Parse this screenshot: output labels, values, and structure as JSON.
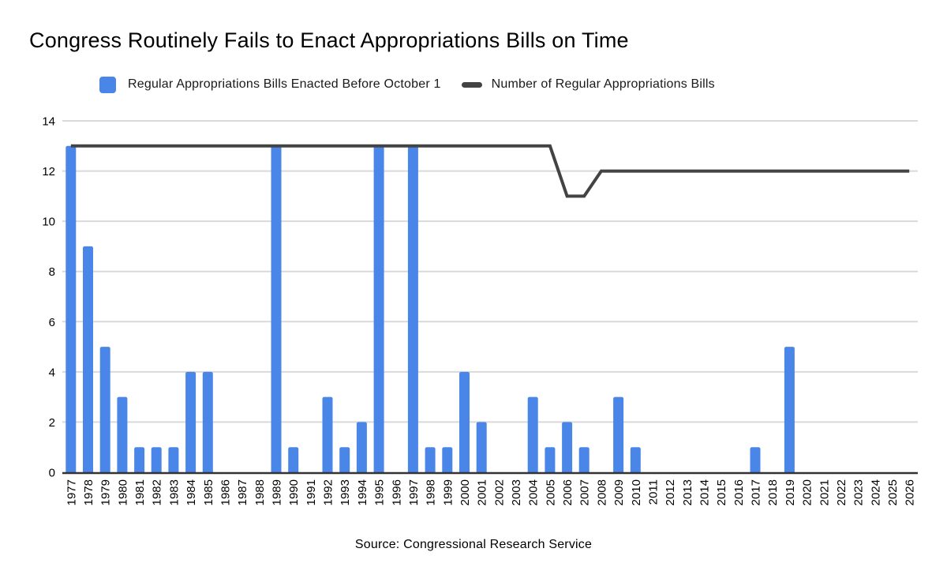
{
  "page": {
    "title": "Congress Routinely Fails to Enact Appropriations Bills on Time",
    "source": "Source: Congressional Research Service"
  },
  "legend": [
    {
      "label": "Regular Appropriations Bills Enacted Before October 1",
      "marker": "square",
      "color": "#4a86e8"
    },
    {
      "label": "Number of Regular Appropriations Bills",
      "marker": "line",
      "color": "#434343"
    }
  ],
  "chart_data": {
    "type": "combo",
    "title": "Congress Routinely Fails to Enact Appropriations Bills on Time",
    "xlabel": "",
    "ylabel": "",
    "ylim": [
      0,
      14
    ],
    "yticks": [
      0,
      2,
      4,
      6,
      8,
      10,
      12,
      14
    ],
    "grid": true,
    "legend_position": "top",
    "categories": [
      "1977",
      "1978",
      "1979",
      "1980",
      "1981",
      "1982",
      "1983",
      "1984",
      "1985",
      "1986",
      "1987",
      "1988",
      "1989",
      "1990",
      "1991",
      "1992",
      "1993",
      "1994",
      "1995",
      "1996",
      "1997",
      "1998",
      "1999",
      "2000",
      "2001",
      "2002",
      "2003",
      "2004",
      "2005",
      "2006",
      "2007",
      "2008",
      "2009",
      "2010",
      "2011",
      "2012",
      "2013",
      "2014",
      "2015",
      "2016",
      "2017",
      "2018",
      "2019",
      "2020",
      "2021",
      "2022",
      "2023",
      "2024",
      "2025",
      "2026"
    ],
    "series": [
      {
        "name": "Regular Appropriations Bills Enacted Before October 1",
        "type": "bar",
        "color": "#4a86e8",
        "values": [
          13,
          9,
          5,
          3,
          1,
          1,
          1,
          4,
          4,
          0,
          0,
          0,
          13,
          1,
          0,
          3,
          1,
          2,
          13,
          0,
          13,
          1,
          1,
          4,
          2,
          0,
          0,
          3,
          1,
          2,
          1,
          0,
          3,
          1,
          0,
          0,
          0,
          0,
          0,
          0,
          1,
          0,
          5,
          0,
          0,
          0,
          0,
          0,
          0,
          0
        ]
      },
      {
        "name": "Number of Regular Appropriations Bills",
        "type": "line",
        "color": "#434343",
        "values": [
          13,
          13,
          13,
          13,
          13,
          13,
          13,
          13,
          13,
          13,
          13,
          13,
          13,
          13,
          13,
          13,
          13,
          13,
          13,
          13,
          13,
          13,
          13,
          13,
          13,
          13,
          13,
          13,
          13,
          11,
          11,
          12,
          12,
          12,
          12,
          12,
          12,
          12,
          12,
          12,
          12,
          12,
          12,
          12,
          12,
          12,
          12,
          12,
          12,
          12
        ]
      }
    ],
    "colors": {
      "grid": "#d9d9d9",
      "axis": "#333333",
      "tick_text": "#000000"
    }
  }
}
